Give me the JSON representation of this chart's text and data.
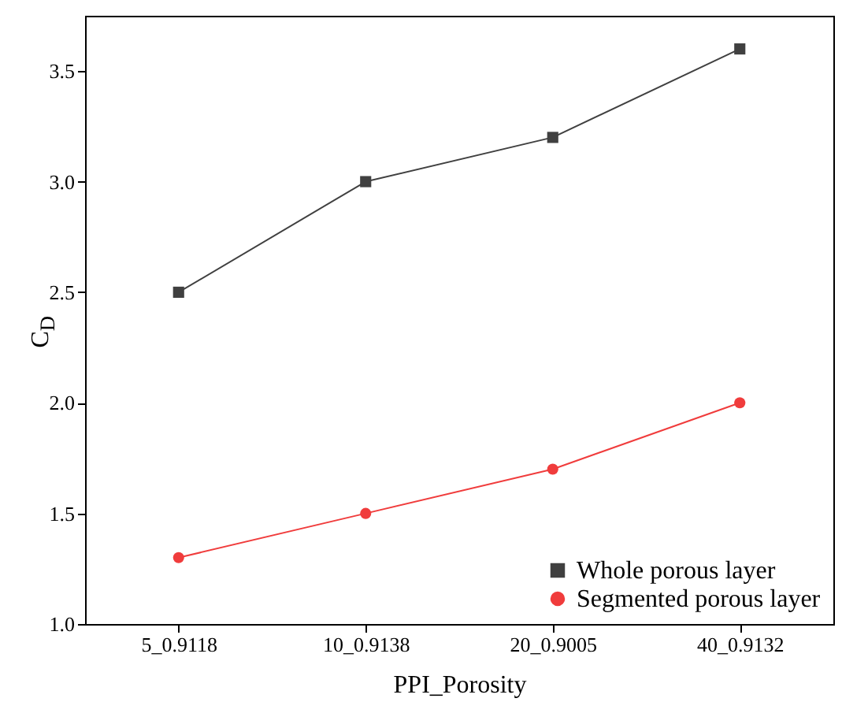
{
  "chart_data": {
    "type": "line",
    "xlabel": "PPI_Porosity",
    "ylabel": "C$_{D}$",
    "categories": [
      "5_0.9118",
      "10_0.9138",
      "20_0.9005",
      "40_0.9132"
    ],
    "series": [
      {
        "name": "Whole porous layer",
        "color": "#404040",
        "marker": "square",
        "values": [
          2.5,
          3.0,
          3.2,
          3.6
        ]
      },
      {
        "name": "Segmented porous layer",
        "color": "#f03c3c",
        "marker": "circle",
        "values": [
          1.3,
          1.5,
          1.7,
          2.0
        ]
      }
    ],
    "ylim": [
      1.0,
      3.75
    ],
    "yticks": [
      {
        "value": 1,
        "label": "1.0"
      },
      1.5,
      {
        "value": 2,
        "label": "2.0"
      },
      2.5,
      {
        "value": 3,
        "label": "3.0"
      },
      3.5
    ],
    "grid": false,
    "legend": "bottom right",
    "line_style": "solid"
  }
}
